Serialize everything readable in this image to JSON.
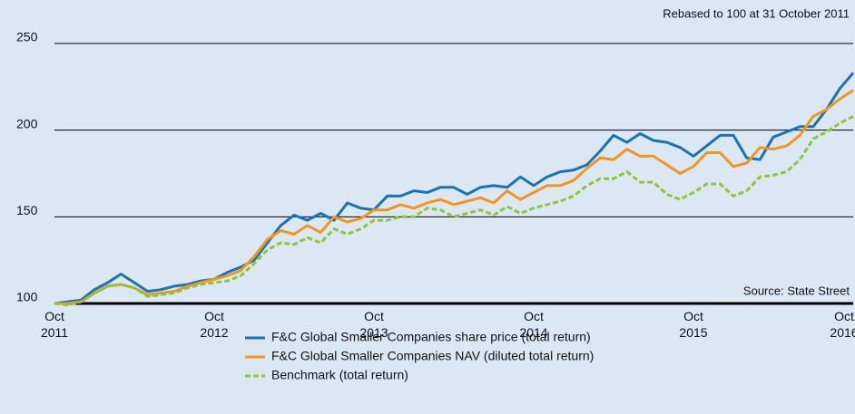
{
  "chart_data": {
    "type": "line",
    "annotations": [
      "Rebased to 100 at 31 October 2011",
      "Source: State Street"
    ],
    "categories": [
      "Oct 2011",
      null,
      null,
      null,
      null,
      null,
      null,
      null,
      null,
      null,
      null,
      null,
      "Oct 2012",
      null,
      null,
      null,
      null,
      null,
      null,
      null,
      null,
      null,
      null,
      null,
      "Oct 2013",
      null,
      null,
      null,
      null,
      null,
      null,
      null,
      null,
      null,
      null,
      null,
      "Oct 2014",
      null,
      null,
      null,
      null,
      null,
      null,
      null,
      null,
      null,
      null,
      null,
      "Oct 2015",
      null,
      null,
      null,
      null,
      null,
      null,
      null,
      null,
      null,
      null,
      null,
      "Oct 2016"
    ],
    "series": [
      {
        "name": "F&C Global Smaller Companies share price (total return)",
        "color": "#1a72b8",
        "dash": false,
        "values": [
          100,
          101,
          102,
          108,
          112,
          117,
          112,
          107,
          108,
          110,
          111,
          113,
          114,
          118,
          121,
          125,
          135,
          145,
          151,
          148,
          152,
          148,
          158,
          155,
          154,
          162,
          162,
          165,
          164,
          167,
          167,
          163,
          167,
          168,
          167,
          173,
          168,
          173,
          176,
          177,
          180,
          188,
          197,
          193,
          198,
          194,
          193,
          190,
          185,
          191,
          197,
          197,
          184,
          183,
          196,
          199,
          202,
          202,
          212,
          224,
          233
        ]
      },
      {
        "name": "F&C Global Smaller Companies NAV (diluted total return)",
        "color": "#f3961c",
        "dash": false,
        "values": [
          100,
          100,
          101,
          106,
          110,
          111,
          109,
          105,
          106,
          107,
          110,
          112,
          114,
          116,
          119,
          127,
          137,
          142,
          140,
          145,
          141,
          150,
          147,
          149,
          154,
          154,
          157,
          155,
          158,
          160,
          157,
          159,
          161,
          158,
          165,
          160,
          164,
          168,
          168,
          171,
          178,
          184,
          183,
          189,
          185,
          185,
          180,
          175,
          179,
          187,
          187,
          179,
          181,
          190,
          189,
          191,
          197,
          208,
          212,
          218,
          223
        ]
      },
      {
        "name": "Benchmark (total return)",
        "color": "#8cc63f",
        "dash": true,
        "values": [
          100,
          99,
          101,
          106,
          110,
          111,
          109,
          104,
          105,
          106,
          109,
          111,
          112,
          113,
          116,
          123,
          131,
          135,
          134,
          138,
          135,
          143,
          140,
          143,
          148,
          148,
          150,
          150,
          155,
          154,
          150,
          152,
          154,
          151,
          156,
          152,
          155,
          157,
          159,
          162,
          168,
          172,
          172,
          176,
          170,
          170,
          163,
          160,
          164,
          169,
          169,
          162,
          165,
          173,
          174,
          176,
          183,
          195,
          199,
          204,
          208
        ]
      }
    ],
    "ylim": [
      100,
      250
    ],
    "yticks": [
      100,
      150,
      200,
      250
    ],
    "grid": true
  }
}
